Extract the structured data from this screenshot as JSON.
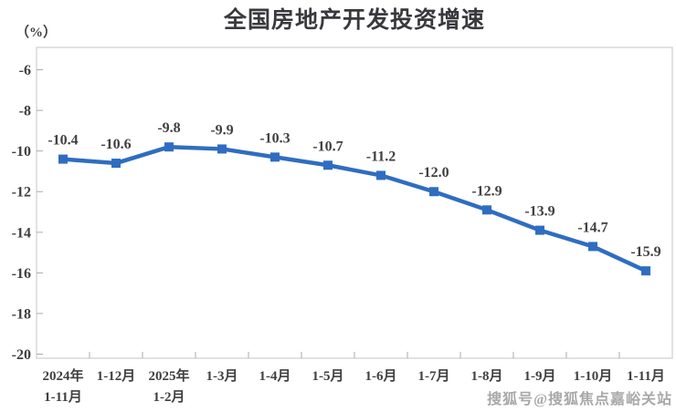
{
  "page": {
    "background": "#ffffff"
  },
  "watermark": {
    "text": "搜狐号@搜狐焦点嘉峪关站",
    "color": "#a8a8a8"
  },
  "chart_data": {
    "type": "line",
    "title": "全国房地产开发投资增速",
    "unit_label": "（%）",
    "categories": [
      [
        "2024年",
        "1-11月"
      ],
      [
        "1-12月"
      ],
      [
        "2025年",
        "1-2月"
      ],
      [
        "1-3月"
      ],
      [
        "1-4月"
      ],
      [
        "1-5月"
      ],
      [
        "1-6月"
      ],
      [
        "1-7月"
      ],
      [
        "1-8月"
      ],
      [
        "1-9月"
      ],
      [
        "1-10月"
      ],
      [
        "1-11月"
      ]
    ],
    "values": [
      -10.4,
      -10.6,
      -9.8,
      -9.9,
      -10.3,
      -10.7,
      -11.2,
      -12.0,
      -12.9,
      -13.9,
      -14.7,
      -15.9
    ],
    "data_labels": [
      "-10.4",
      "-10.6",
      "-9.8",
      "-9.9",
      "-10.3",
      "-10.7",
      "-11.2",
      "-12.0",
      "-12.9",
      "-13.9",
      "-14.7",
      "-15.9"
    ],
    "y_ticks": [
      -6,
      -8,
      -10,
      -12,
      -14,
      -16,
      -18,
      -20
    ],
    "ylim": [
      -20.2,
      -4.9
    ],
    "grid": false,
    "legend": "none",
    "line_color": "#2f6dc1",
    "marker_shape": "square",
    "axis_color": "#d9d9d9",
    "tick_color": "#ababab",
    "text_color": "#3f3f3f"
  }
}
